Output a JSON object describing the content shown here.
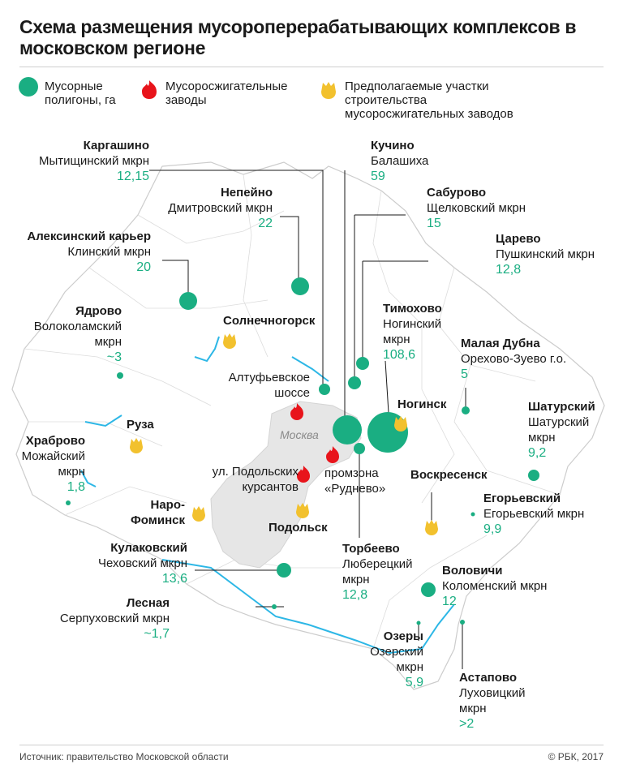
{
  "title": "Схема размещения мусороперерабатывающих комплексов в московском регионе",
  "colors": {
    "landfill": "#1aae82",
    "incinerator": "#e8141b",
    "planned": "#f2c12e",
    "region_fill": "#ffffff",
    "region_line": "#cccccc",
    "moscow_fill": "#e6e6e6",
    "river": "#2db7e6"
  },
  "legend": {
    "landfill": "Мусорные полигоны, га",
    "incinerator": "Мусоросжигательные заводы",
    "planned": "Предполагаемые участки строительства мусоросжигательных заводов"
  },
  "landfills": [
    {
      "name": "Каргашино",
      "district": "Мытищинский мкрн",
      "value": "12,15"
    },
    {
      "name": "Непейно",
      "district": "Дмитровский мкрн",
      "value": "22"
    },
    {
      "name": "Алексинский карьер",
      "district": "Клинский мкрн",
      "value": "20"
    },
    {
      "name": "Ядрово",
      "district": "Волоколамский мкрн",
      "value": "~3"
    },
    {
      "name": "Храброво",
      "district": "Можайский мкрн",
      "value": "1,8"
    },
    {
      "name": "Кулаковский",
      "district": "Чеховский мкрн",
      "value": "13,6"
    },
    {
      "name": "Лесная",
      "district": "Серпуховский мкрн",
      "value": "~1,7"
    },
    {
      "name": "Кучино",
      "district": "Балашиха",
      "value": "59"
    },
    {
      "name": "Сабурово",
      "district": "Щелковский мкрн",
      "value": "15"
    },
    {
      "name": "Царево",
      "district": "Пушкинский мкрн",
      "value": "12,8"
    },
    {
      "name": "Тимохово",
      "district": "Ногинский мкрн",
      "value": "108,6"
    },
    {
      "name": "Малая Дубна",
      "district": "Орехово-Зуево г.о.",
      "value": "5"
    },
    {
      "name": "Шатурский",
      "district": "Шатурский мкрн",
      "value": "9,2"
    },
    {
      "name": "Егорьевский",
      "district": "Егорьевский мкрн",
      "value": "9,9"
    },
    {
      "name": "Торбеево",
      "district": "Люберецкий мкрн",
      "value": "12,8"
    },
    {
      "name": "Воловичи",
      "district": "Коломенский мкрн",
      "value": "12"
    },
    {
      "name": "Озеры",
      "district": "Озерский мкрн",
      "value": "5,9"
    },
    {
      "name": "Астапово",
      "district": "Луховицкий мкрн",
      "value": ">2"
    },
    {
      "name": "Алтуфьевское шоссе"
    }
  ],
  "incinerators": [
    "ул. Подольских курсантов",
    "промзона «Руднево»"
  ],
  "planned_sites": [
    "Солнечногорск",
    "Руза",
    "Наро-Фоминск",
    "Подольск",
    "Ногинск",
    "Воскресенск"
  ],
  "city": "Москва",
  "footer": {
    "source": "Источник: правительство Московской области",
    "credit": "© РБК, 2017"
  }
}
